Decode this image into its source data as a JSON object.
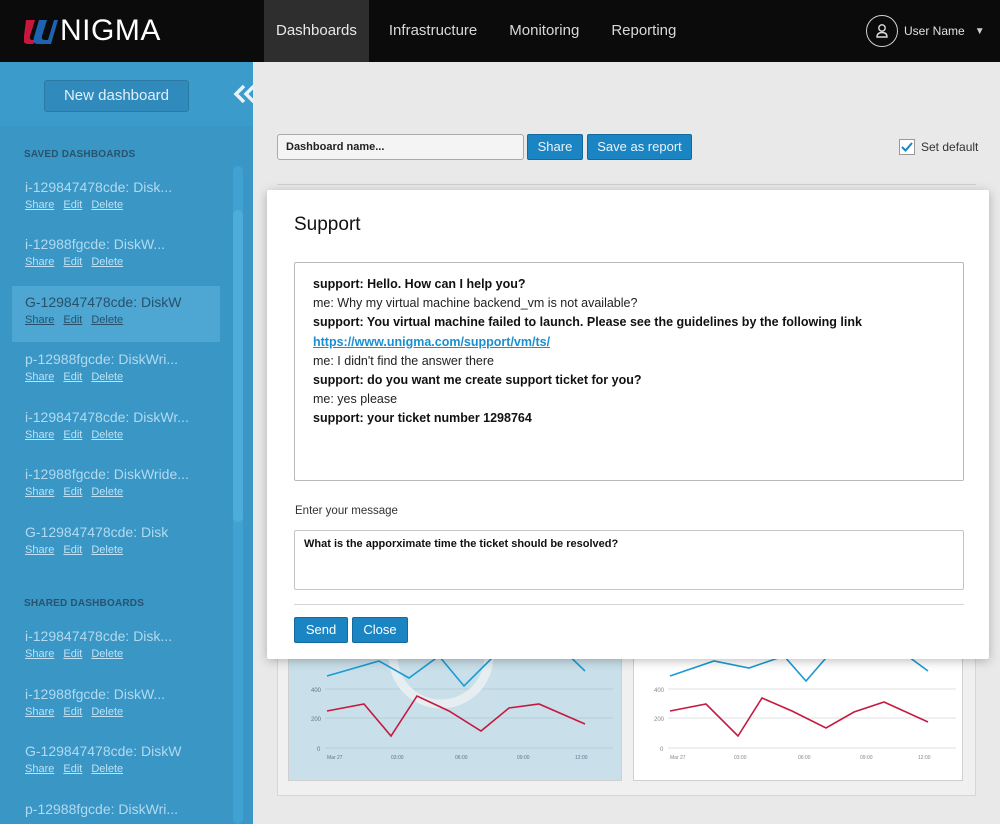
{
  "brand": {
    "name": "NIGMA",
    "accent": "#d4183d"
  },
  "nav": [
    {
      "label": "Dashboards",
      "active": true
    },
    {
      "label": "Infrastructure"
    },
    {
      "label": "Monitoring"
    },
    {
      "label": "Reporting"
    }
  ],
  "user": {
    "name": "User Name",
    "icon": "user-icon"
  },
  "sidebar": {
    "new_button": "New dashboard",
    "collapse_icon": "double-chevron-left-icon",
    "saved_title": "SAVED DASHBOARDS",
    "shared_title": "SHARED DASHBOARDS",
    "action_share": "Share",
    "action_edit": "Edit",
    "action_delete": "Delete",
    "saved": [
      {
        "name": "i-129847478cde: Disk..."
      },
      {
        "name": "i-12988fgcde: DiskW..."
      },
      {
        "name": "G-129847478cde: DiskW",
        "selected": true
      },
      {
        "name": "p-12988fgcde: DiskWri..."
      },
      {
        "name": "i-129847478cde: DiskWr..."
      },
      {
        "name": "i-12988fgcde: DiskWride..."
      },
      {
        "name": "G-129847478cde: Disk"
      }
    ],
    "shared": [
      {
        "name": "i-129847478cde: Disk..."
      },
      {
        "name": "i-12988fgcde: DiskW..."
      },
      {
        "name": "G-129847478cde: DiskW"
      },
      {
        "name": "p-12988fgcde: DiskWri..."
      }
    ]
  },
  "toolbar": {
    "name_placeholder": "Dashboard name...",
    "share": "Share",
    "save_report": "Save as report",
    "set_default": "Set default",
    "set_default_checked": true
  },
  "modal": {
    "title": "Support",
    "chat": [
      {
        "who": "support",
        "text": "support: Hello. How can I help you?"
      },
      {
        "who": "me",
        "text": "me: Why my virtual machine backend_vm is not available?"
      },
      {
        "who": "support",
        "text": "support: You virtual machine failed to launch. Please see the guidelines by the following link"
      },
      {
        "who": "link",
        "text": "https://www.unigma.com/support/vm/ts/"
      },
      {
        "who": "me",
        "text": "me: I didn't find the answer there"
      },
      {
        "who": "support",
        "text": "support: do you want me create support ticket for you?"
      },
      {
        "who": "me",
        "text": "me: yes please"
      },
      {
        "who": "support",
        "text": "support: your ticket number 1298764"
      }
    ],
    "message_label": "Enter your message",
    "message_value": "What is the apporximate time the ticket should be resolved?",
    "send": "Send",
    "close": "Close"
  },
  "charts": {
    "left": {
      "y_ticks": [
        "400",
        "200",
        "0"
      ],
      "x_ticks": [
        "Mar 27",
        "03:00",
        "06:00",
        "09:00",
        "12:00"
      ]
    },
    "right": {
      "y_ticks": [
        "400",
        "200",
        "0"
      ],
      "x_ticks": [
        "Mar 27",
        "03:00",
        "06:00",
        "09:00",
        "12:00"
      ]
    },
    "blue": "#1a9ad6",
    "red": "#c5193f"
  }
}
